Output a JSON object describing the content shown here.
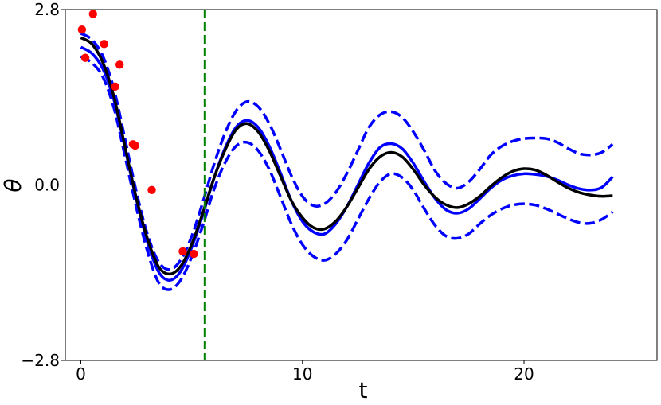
{
  "chart_data": {
    "type": "line",
    "title": "",
    "xlabel": "t",
    "ylabel": "θ",
    "xlim": [
      -0.7,
      26.0
    ],
    "ylim": [
      -2.8,
      2.8
    ],
    "x_ticks": [
      0,
      10,
      20
    ],
    "x_tick_labels": [
      "0",
      "10",
      "20"
    ],
    "y_ticks": [
      -2.8,
      0.0,
      2.8
    ],
    "y_tick_labels": [
      "−2.8",
      "0.0",
      "2.8"
    ],
    "grid": false,
    "legend": "none",
    "vertical_line": {
      "x": 5.6,
      "color": "#008000",
      "style": "dashed"
    },
    "colors": {
      "black": "#000000",
      "blue": "#0000ff",
      "red": "#ff0000",
      "green": "#008000"
    },
    "series": [
      {
        "kind": "line",
        "color": "#000000",
        "style": "solid",
        "x": [
          0,
          0.5,
          1,
          1.5,
          2,
          2.5,
          3,
          3.5,
          4,
          4.5,
          5,
          5.5,
          6,
          6.5,
          7,
          7.5,
          8,
          8.5,
          9,
          9.5,
          10,
          10.5,
          11,
          11.5,
          12,
          12.5,
          13,
          13.5,
          14,
          14.5,
          15,
          15.5,
          16,
          16.5,
          17,
          17.5,
          18,
          18.5,
          19,
          19.5,
          20,
          20.5,
          21,
          21.5,
          22,
          22.5,
          23,
          23.5,
          24
        ],
        "y": [
          2.35,
          2.25,
          1.95,
          1.4,
          0.6,
          -0.2,
          -0.85,
          -1.3,
          -1.42,
          -1.3,
          -0.95,
          -0.45,
          0.1,
          0.55,
          0.88,
          0.98,
          0.85,
          0.55,
          0.15,
          -0.25,
          -0.52,
          -0.68,
          -0.7,
          -0.58,
          -0.35,
          -0.05,
          0.25,
          0.45,
          0.52,
          0.45,
          0.25,
          0.0,
          -0.2,
          -0.32,
          -0.36,
          -0.3,
          -0.18,
          -0.02,
          0.12,
          0.22,
          0.26,
          0.24,
          0.16,
          0.05,
          -0.05,
          -0.12,
          -0.16,
          -0.18,
          -0.17
        ]
      },
      {
        "kind": "line",
        "color": "#0000ff",
        "style": "solid",
        "x": [
          0,
          0.5,
          1,
          1.5,
          2,
          2.5,
          3,
          3.5,
          4,
          4.5,
          5,
          5.5,
          6,
          6.5,
          7,
          7.5,
          8,
          8.5,
          9,
          9.5,
          10,
          10.5,
          11,
          11.5,
          12,
          12.5,
          13,
          13.5,
          14,
          14.5,
          15,
          15.5,
          16,
          16.5,
          17,
          17.5,
          18,
          18.5,
          19,
          19.5,
          20,
          20.5,
          21,
          21.5,
          22,
          22.5,
          23,
          23.5,
          24
        ],
        "y": [
          2.2,
          2.1,
          1.85,
          1.35,
          0.58,
          -0.22,
          -0.9,
          -1.38,
          -1.52,
          -1.38,
          -1.0,
          -0.48,
          0.1,
          0.58,
          0.92,
          1.03,
          0.92,
          0.62,
          0.2,
          -0.25,
          -0.58,
          -0.75,
          -0.78,
          -0.62,
          -0.35,
          0.0,
          0.35,
          0.6,
          0.66,
          0.58,
          0.35,
          0.05,
          -0.22,
          -0.4,
          -0.45,
          -0.38,
          -0.22,
          -0.05,
          0.08,
          0.15,
          0.18,
          0.17,
          0.14,
          0.08,
          0.0,
          -0.06,
          -0.08,
          -0.04,
          0.13
        ]
      },
      {
        "kind": "line",
        "color": "#0000ff",
        "style": "dashed",
        "x": [
          0,
          0.5,
          1,
          1.5,
          2,
          2.5,
          3,
          3.5,
          4,
          4.5,
          5,
          5.5,
          6,
          6.5,
          7,
          7.5,
          8,
          8.5,
          9,
          9.5,
          10,
          10.5,
          11,
          11.5,
          12,
          12.5,
          13,
          13.5,
          14,
          14.5,
          15,
          15.5,
          16,
          16.5,
          17,
          17.5,
          18,
          18.5,
          19,
          19.5,
          20,
          20.5,
          21,
          21.5,
          22,
          22.5,
          23,
          23.5,
          24
        ],
        "y": [
          2.42,
          2.32,
          2.05,
          1.52,
          0.72,
          -0.1,
          -0.78,
          -1.22,
          -1.35,
          -1.2,
          -0.82,
          -0.28,
          0.32,
          0.82,
          1.18,
          1.33,
          1.25,
          0.98,
          0.58,
          0.15,
          -0.18,
          -0.33,
          -0.3,
          -0.12,
          0.18,
          0.55,
          0.92,
          1.12,
          1.17,
          1.08,
          0.85,
          0.55,
          0.22,
          0.02,
          -0.05,
          0.05,
          0.25,
          0.48,
          0.62,
          0.7,
          0.74,
          0.75,
          0.74,
          0.68,
          0.58,
          0.5,
          0.48,
          0.52,
          0.65
        ]
      },
      {
        "kind": "line",
        "color": "#0000ff",
        "style": "dashed",
        "x": [
          0,
          0.5,
          1,
          1.5,
          2,
          2.5,
          3,
          3.5,
          4,
          4.5,
          5,
          5.5,
          6,
          6.5,
          7,
          7.5,
          8,
          8.5,
          9,
          9.5,
          10,
          10.5,
          11,
          11.5,
          12,
          12.5,
          13,
          13.5,
          14,
          14.5,
          15,
          15.5,
          16,
          16.5,
          17,
          17.5,
          18,
          18.5,
          19,
          19.5,
          20,
          20.5,
          21,
          21.5,
          22,
          22.5,
          23,
          23.5,
          24
        ],
        "y": [
          2.05,
          1.95,
          1.72,
          1.22,
          0.45,
          -0.35,
          -1.05,
          -1.55,
          -1.67,
          -1.52,
          -1.15,
          -0.65,
          -0.08,
          0.35,
          0.62,
          0.68,
          0.55,
          0.25,
          -0.18,
          -0.62,
          -0.95,
          -1.14,
          -1.2,
          -1.1,
          -0.88,
          -0.55,
          -0.22,
          0.05,
          0.18,
          0.12,
          -0.08,
          -0.38,
          -0.65,
          -0.82,
          -0.85,
          -0.78,
          -0.62,
          -0.48,
          -0.38,
          -0.32,
          -0.3,
          -0.32,
          -0.38,
          -0.46,
          -0.54,
          -0.6,
          -0.61,
          -0.55,
          -0.43
        ]
      },
      {
        "kind": "scatter",
        "color": "#ff0000",
        "x": [
          0.05,
          0.2,
          0.55,
          1.05,
          1.55,
          1.75,
          2.35,
          2.45,
          3.2,
          4.6,
          5.1
        ],
        "y": [
          2.48,
          2.03,
          2.73,
          2.25,
          1.57,
          1.92,
          0.65,
          0.63,
          -0.08,
          -1.06,
          -1.1
        ]
      }
    ]
  }
}
